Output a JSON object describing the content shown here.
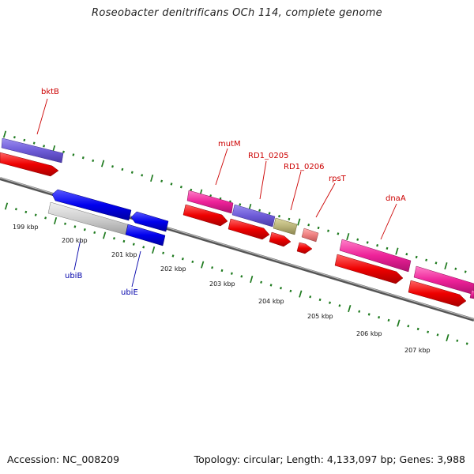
{
  "title": "Roseobacter denitrificans OCh 114, complete genome",
  "footer": {
    "accession": "Accession: NC_008209",
    "stats": "Topology: circular; Length: 4,133,097 bp; Genes: 3,988"
  },
  "colors": {
    "backbone": "#7a7a7a",
    "tick": "#1e7a1e",
    "label_top": "#cc0000",
    "label_bottom": "#0000aa"
  },
  "kbp_labels": [
    "199 kbp",
    "200 kbp",
    "201 kbp",
    "202 kbp",
    "203 kbp",
    "204 kbp",
    "205 kbp",
    "206 kbp",
    "207 kbp"
  ],
  "gene_labels_top": [
    {
      "name": "bktB"
    },
    {
      "name": "mutM"
    },
    {
      "name": "RD1_0205"
    },
    {
      "name": "RD1_0206"
    },
    {
      "name": "rpsT"
    },
    {
      "name": "dnaA"
    }
  ],
  "gene_labels_bottom": [
    {
      "name": "ubiB"
    },
    {
      "name": "ubiE"
    }
  ]
}
